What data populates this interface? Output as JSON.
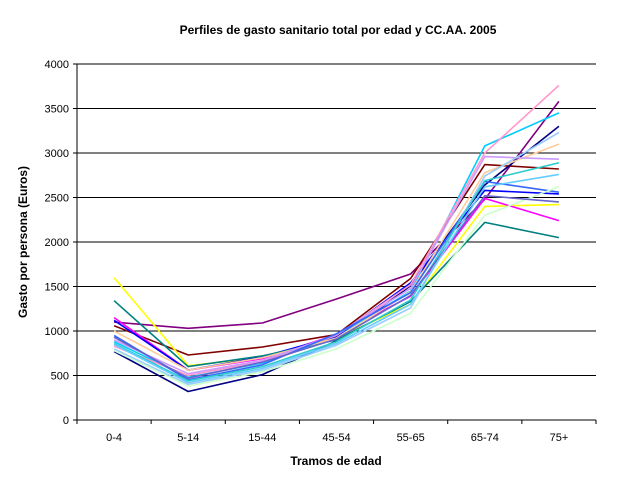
{
  "chart_data": {
    "type": "line",
    "title": "Perfiles de gasto sanitario total por edad y CC.AA. 2005",
    "xlabel": "Tramos de edad",
    "ylabel": "Gasto por persona (Euros)",
    "categories": [
      "0-4",
      "5-14",
      "15-44",
      "45-54",
      "55-65",
      "65-74",
      "75+"
    ],
    "ylim": [
      0,
      4000
    ],
    "yticks": [
      0,
      500,
      1000,
      1500,
      2000,
      2500,
      3000,
      3500,
      4000
    ],
    "grid": true,
    "legend": "none",
    "series": [
      {
        "color": "#800080",
        "values": [
          1100,
          1030,
          1090,
          1360,
          1640,
          2480,
          3580
        ]
      },
      {
        "color": "#800000",
        "values": [
          1060,
          730,
          820,
          960,
          1590,
          2870,
          2820
        ]
      },
      {
        "color": "#000080",
        "values": [
          770,
          320,
          510,
          890,
          1510,
          2640,
          3300
        ]
      },
      {
        "color": "#FFFF00",
        "values": [
          1600,
          610,
          700,
          920,
          1300,
          2400,
          2420
        ]
      },
      {
        "color": "#FF00FF",
        "values": [
          1150,
          560,
          690,
          960,
          1390,
          2490,
          2240
        ]
      },
      {
        "color": "#00CCFF",
        "values": [
          880,
          480,
          640,
          930,
          1450,
          3080,
          3450
        ]
      },
      {
        "color": "#0000FF",
        "values": [
          1120,
          560,
          710,
          940,
          1540,
          2580,
          2540
        ]
      },
      {
        "color": "#008080",
        "values": [
          1340,
          600,
          720,
          900,
          1330,
          2220,
          2050
        ]
      },
      {
        "color": "#FF99CC",
        "values": [
          830,
          500,
          660,
          950,
          1520,
          3000,
          3760
        ]
      },
      {
        "color": "#FFCC99",
        "values": [
          1000,
          560,
          700,
          920,
          1440,
          2780,
          3100
        ]
      },
      {
        "color": "#CC99FF",
        "values": [
          900,
          520,
          670,
          960,
          1480,
          2960,
          2930
        ]
      },
      {
        "color": "#3366FF",
        "values": [
          950,
          450,
          620,
          970,
          1430,
          2680,
          2560
        ]
      },
      {
        "color": "#99CCFF",
        "values": [
          800,
          400,
          560,
          840,
          1260,
          2740,
          3230
        ]
      },
      {
        "color": "#33CCCC",
        "values": [
          860,
          440,
          600,
          880,
          1350,
          2690,
          2890
        ]
      },
      {
        "color": "#CCFFCC",
        "values": [
          780,
          380,
          540,
          800,
          1200,
          2300,
          2620
        ]
      },
      {
        "color": "#6666CC",
        "values": [
          930,
          470,
          650,
          910,
          1400,
          2520,
          2450
        ]
      },
      {
        "color": "#66CCFF",
        "values": [
          850,
          420,
          580,
          860,
          1300,
          2620,
          2760
        ]
      }
    ]
  }
}
